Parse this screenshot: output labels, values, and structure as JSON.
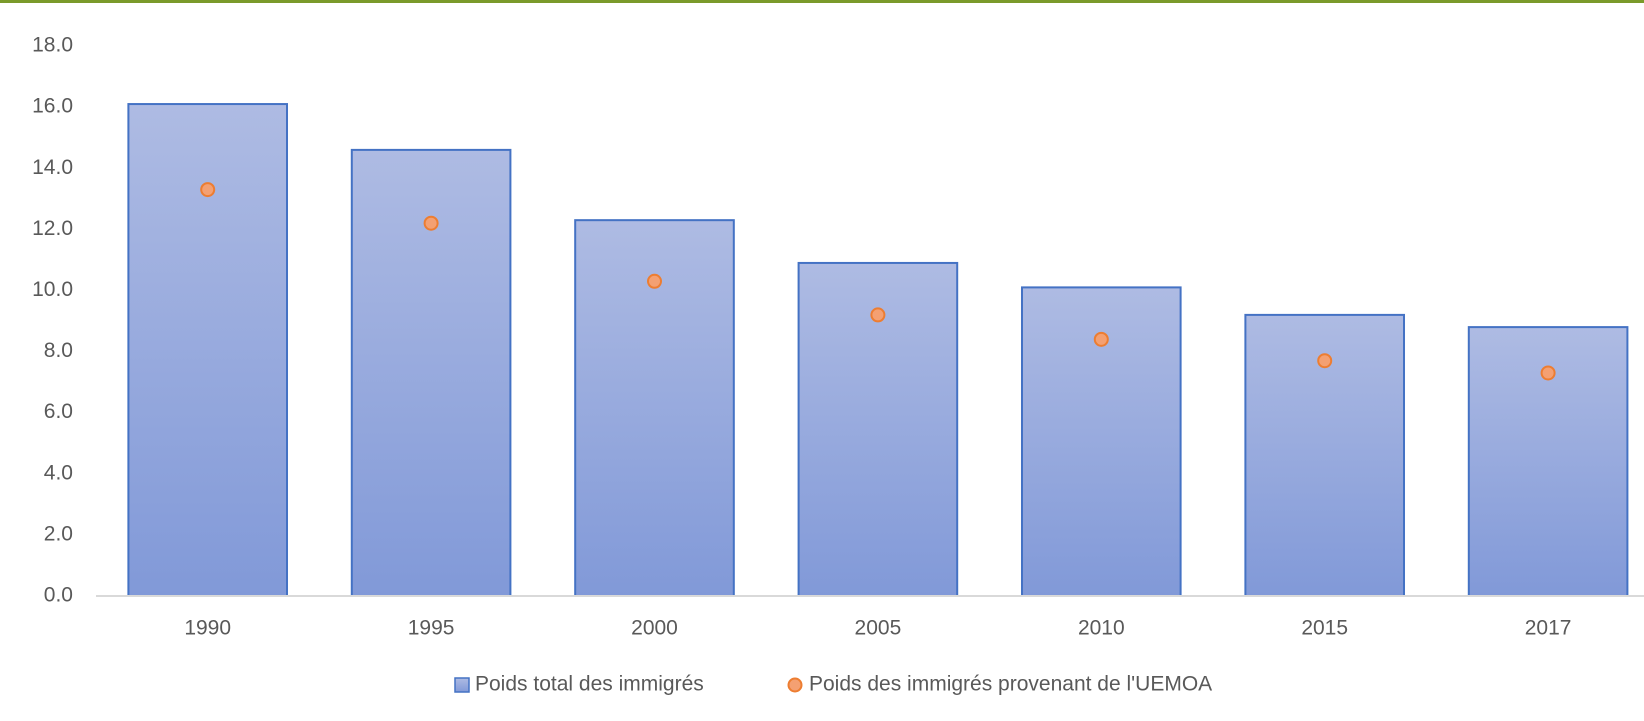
{
  "chart_data": {
    "type": "bar",
    "categories": [
      "1990",
      "1995",
      "2000",
      "2005",
      "2010",
      "2015",
      "2017"
    ],
    "series": [
      {
        "name": "Poids total des immigrés",
        "color": "#4472c4",
        "values": [
          16.1,
          14.6,
          12.3,
          10.9,
          10.1,
          9.2,
          8.8
        ]
      },
      {
        "name": "Poids des immigrés provenant de l'UEMOA",
        "color": "#ed7d31",
        "kind": "marker",
        "values": [
          13.3,
          12.2,
          10.3,
          9.2,
          8.4,
          7.7,
          7.3
        ]
      }
    ],
    "ylim": [
      0,
      18
    ],
    "yticks": [
      {
        "value": 0,
        "label": "0.0"
      },
      {
        "value": 2,
        "label": "2.0"
      },
      {
        "value": 4,
        "label": "4.0"
      },
      {
        "value": 6,
        "label": "6.0"
      },
      {
        "value": 8,
        "label": "8.0"
      },
      {
        "value": 10,
        "label": "10.0"
      },
      {
        "value": 12,
        "label": "12.0"
      },
      {
        "value": 14,
        "label": "14.0"
      },
      {
        "value": 16,
        "label": "16.0"
      },
      {
        "value": 18,
        "label": "18.0"
      }
    ],
    "grid": false,
    "legend": "bottom"
  }
}
